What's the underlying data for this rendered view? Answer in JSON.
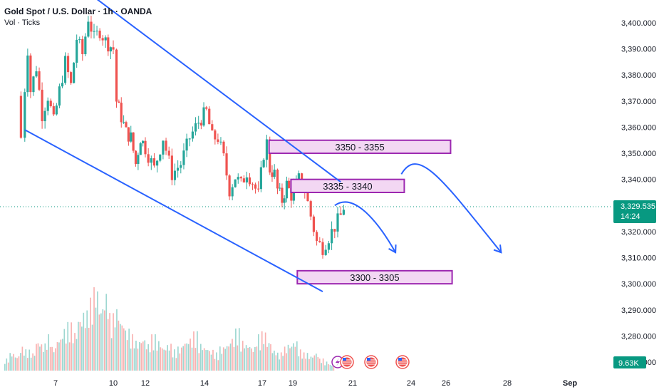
{
  "header": {
    "title": "Gold Spot / U.S. Dollar · 1h · OANDA",
    "subtitle": "Vol · Ticks"
  },
  "colors": {
    "up": "#26a69a",
    "down": "#ef5350",
    "channel": "#2962ff",
    "zone_fill": "#f3d7f3",
    "zone_border": "#9c27b0",
    "price_tag": "#089981",
    "dotted": "#089981",
    "text": "#131722",
    "axis_bg": "#ffffff"
  },
  "chart_data": {
    "type": "candlestick",
    "title": "Gold Spot / U.S. Dollar · 1h · OANDA",
    "y_axis": {
      "ticks": [
        "3,400.000",
        "3,390.000",
        "3,380.000",
        "3,370.000",
        "3,360.000",
        "3,350.000",
        "3,340.000",
        "3,330.000",
        "3,320.000",
        "3,310.000",
        "3,300.000",
        "3,290.000",
        "3,280.000",
        "3,270.000"
      ],
      "range": [
        3264,
        3406
      ]
    },
    "x_axis": {
      "ticks": [
        "7",
        "10",
        "12",
        "14",
        "17",
        "19",
        "21",
        "24",
        "26",
        "28",
        "Sep"
      ]
    },
    "current_price": {
      "label": "3,329.535",
      "countdown": "14:24"
    },
    "volume_label": "9.63K",
    "price_path": [
      [
        5.0,
        3372
      ],
      [
        5.2,
        3356
      ],
      [
        5.4,
        3375
      ],
      [
        5.55,
        3390
      ],
      [
        5.7,
        3374
      ],
      [
        6.0,
        3383
      ],
      [
        6.3,
        3365
      ],
      [
        6.6,
        3372
      ],
      [
        6.9,
        3362
      ],
      [
        7.2,
        3374
      ],
      [
        7.5,
        3385
      ],
      [
        7.8,
        3376
      ],
      [
        8.1,
        3394
      ],
      [
        8.4,
        3388
      ],
      [
        8.7,
        3402
      ],
      [
        9.0,
        3394
      ],
      [
        9.3,
        3397
      ],
      [
        9.6,
        3393
      ],
      [
        10.0,
        3390
      ],
      [
        10.2,
        3370
      ],
      [
        10.5,
        3364
      ],
      [
        10.8,
        3358
      ],
      [
        11.1,
        3356
      ],
      [
        11.4,
        3346
      ],
      [
        11.7,
        3356
      ],
      [
        12.0,
        3352
      ],
      [
        12.3,
        3344
      ],
      [
        12.6,
        3356
      ],
      [
        12.9,
        3342
      ],
      [
        13.2,
        3346
      ],
      [
        13.5,
        3356
      ],
      [
        13.8,
        3362
      ],
      [
        14.1,
        3366
      ],
      [
        14.4,
        3356
      ],
      [
        14.7,
        3356
      ],
      [
        15.0,
        3348
      ],
      [
        15.3,
        3336
      ],
      [
        15.6,
        3341
      ],
      [
        15.9,
        3338
      ],
      [
        16.2,
        3343
      ],
      [
        16.5,
        3339
      ],
      [
        16.8,
        3334
      ],
      [
        17.1,
        3350
      ],
      [
        17.3,
        3354
      ],
      [
        17.5,
        3344
      ],
      [
        17.8,
        3342
      ],
      [
        18.0,
        3336
      ],
      [
        18.3,
        3332
      ],
      [
        18.6,
        3338
      ],
      [
        18.9,
        3334
      ],
      [
        19.2,
        3340
      ],
      [
        19.4,
        3336
      ],
      [
        19.6,
        3326
      ],
      [
        19.8,
        3316
      ],
      [
        20.0,
        3314
      ],
      [
        20.2,
        3318
      ],
      [
        20.4,
        3322
      ],
      [
        20.6,
        3326
      ],
      [
        20.7,
        3329.5
      ]
    ],
    "volume": {
      "max_value_k": 30,
      "samples": [
        4,
        6,
        5,
        8,
        7,
        6,
        10,
        9,
        12,
        8,
        11,
        14,
        16,
        13,
        18,
        20,
        24,
        28,
        22,
        26,
        19,
        21,
        17,
        14,
        12,
        10,
        11,
        9,
        12,
        10,
        8,
        9,
        7,
        8,
        10,
        11,
        13,
        9,
        8,
        7,
        6,
        8,
        9,
        11,
        14,
        10,
        9,
        8,
        12,
        13,
        10,
        7,
        6,
        8,
        9,
        10,
        7,
        6,
        5,
        6,
        4,
        3,
        2
      ]
    },
    "zones": [
      {
        "label": "3350 - 3355",
        "low": 3350,
        "high": 3355,
        "x_start": 17.45,
        "x_end": 26.15
      },
      {
        "label": "3335 - 3340",
        "low": 3335,
        "high": 3340,
        "x_start": 18.88,
        "x_end": 23.65
      },
      {
        "label": "3300 - 3305",
        "low": 3300,
        "high": 3305,
        "x_start": 19.15,
        "x_end": 26.2
      }
    ],
    "channel_lines": [
      {
        "from": [
          8.8,
          3411
        ],
        "to": [
          20.6,
          3339
        ]
      },
      {
        "from": [
          5.4,
          3359
        ],
        "to": [
          20.0,
          3297
        ]
      }
    ],
    "projection_arrows": [
      {
        "points": [
          [
            20.4,
            3330
          ],
          [
            21.2,
            3336
          ],
          [
            22.6,
            3320
          ],
          [
            23.2,
            3312
          ]
        ]
      },
      {
        "points": [
          [
            23.5,
            3342
          ],
          [
            24.4,
            3353
          ],
          [
            25.8,
            3340
          ],
          [
            27.8,
            3312
          ]
        ]
      }
    ],
    "event_icons": [
      "news-flash-icon",
      "us-flag-icon",
      "us-flag-icon",
      "us-flag-icon"
    ]
  }
}
